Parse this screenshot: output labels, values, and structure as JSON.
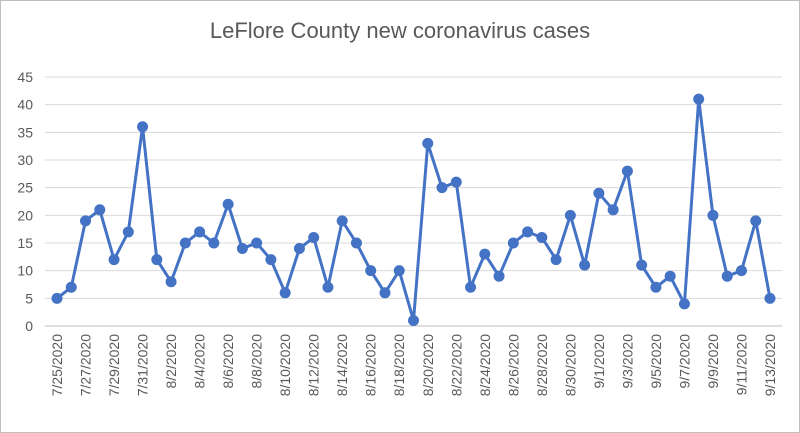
{
  "chart_data": {
    "type": "line",
    "title": "LeFlore County new coronavirus cases",
    "xlabel": "",
    "ylabel": "",
    "ylim": [
      0,
      45
    ],
    "yticks": [
      0,
      5,
      10,
      15,
      20,
      25,
      30,
      35,
      40,
      45
    ],
    "grid": true,
    "legend": "none",
    "line_color": "#4472C4",
    "x": [
      "7/25/2020",
      "7/26/2020",
      "7/27/2020",
      "7/28/2020",
      "7/29/2020",
      "7/30/2020",
      "7/31/2020",
      "8/1/2020",
      "8/2/2020",
      "8/3/2020",
      "8/4/2020",
      "8/5/2020",
      "8/6/2020",
      "8/7/2020",
      "8/8/2020",
      "8/9/2020",
      "8/10/2020",
      "8/11/2020",
      "8/12/2020",
      "8/13/2020",
      "8/14/2020",
      "8/15/2020",
      "8/16/2020",
      "8/17/2020",
      "8/18/2020",
      "8/19/2020",
      "8/20/2020",
      "8/21/2020",
      "8/22/2020",
      "8/23/2020",
      "8/24/2020",
      "8/25/2020",
      "8/26/2020",
      "8/27/2020",
      "8/28/2020",
      "8/29/2020",
      "8/30/2020",
      "8/31/2020",
      "9/1/2020",
      "9/2/2020",
      "9/3/2020",
      "9/4/2020",
      "9/5/2020",
      "9/6/2020",
      "9/7/2020",
      "9/8/2020",
      "9/9/2020",
      "9/10/2020",
      "9/11/2020",
      "9/12/2020",
      "9/13/2020"
    ],
    "xtick_labels": [
      "7/25/2020",
      "7/27/2020",
      "7/29/2020",
      "7/31/2020",
      "8/2/2020",
      "8/4/2020",
      "8/6/2020",
      "8/8/2020",
      "8/10/2020",
      "8/12/2020",
      "8/14/2020",
      "8/16/2020",
      "8/18/2020",
      "8/20/2020",
      "8/22/2020",
      "8/24/2020",
      "8/26/2020",
      "8/28/2020",
      "8/30/2020",
      "9/1/2020",
      "9/3/2020",
      "9/5/2020",
      "9/7/2020",
      "9/9/2020",
      "9/11/2020",
      "9/13/2020"
    ],
    "values": [
      5,
      7,
      19,
      21,
      12,
      17,
      36,
      12,
      8,
      15,
      17,
      15,
      22,
      14,
      15,
      12,
      6,
      14,
      16,
      7,
      19,
      15,
      10,
      6,
      10,
      1,
      33,
      25,
      26,
      7,
      13,
      9,
      15,
      17,
      16,
      12,
      20,
      11,
      24,
      21,
      28,
      11,
      7,
      9,
      4,
      41,
      20,
      9,
      10,
      19,
      5
    ]
  }
}
